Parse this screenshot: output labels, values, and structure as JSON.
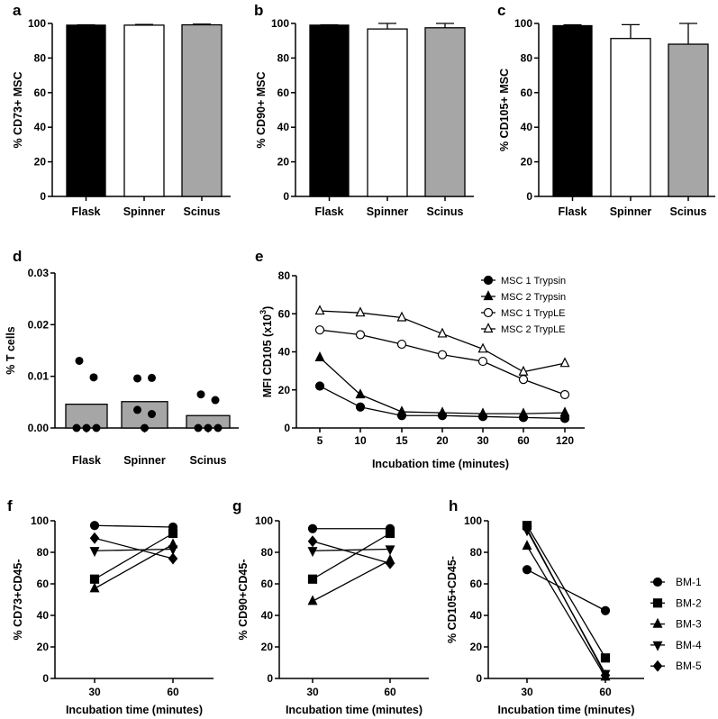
{
  "chart_data": [
    {
      "id": "a",
      "panel": "a",
      "type": "bar",
      "categories": [
        "Flask",
        "Spinner",
        "Scinus"
      ],
      "values": [
        99,
        99,
        99.2
      ],
      "errors": [
        0.2,
        0.4,
        0.4
      ],
      "colors": [
        "#000000",
        "#ffffff",
        "#a6a6a6"
      ],
      "ylabel": "% CD73+ MSC",
      "ylim": [
        0,
        100
      ],
      "yticks": [
        "0",
        "20",
        "40",
        "60",
        "80",
        "100"
      ]
    },
    {
      "id": "b",
      "panel": "b",
      "type": "bar",
      "categories": [
        "Flask",
        "Spinner",
        "Scinus"
      ],
      "values": [
        99,
        96.8,
        97.5
      ],
      "errors": [
        0.2,
        3.2,
        2.5
      ],
      "colors": [
        "#000000",
        "#ffffff",
        "#a6a6a6"
      ],
      "ylabel": "% CD90+ MSC",
      "ylim": [
        0,
        100
      ],
      "yticks": [
        "0",
        "20",
        "40",
        "60",
        "80",
        "100"
      ]
    },
    {
      "id": "c",
      "panel": "c",
      "type": "bar",
      "categories": [
        "Flask",
        "Spinner",
        "Scinus"
      ],
      "values": [
        98.7,
        91.3,
        88
      ],
      "errors": [
        0.5,
        8,
        12
      ],
      "colors": [
        "#000000",
        "#ffffff",
        "#a6a6a6"
      ],
      "ylabel": "% CD105+ MSC",
      "ylim": [
        0,
        100
      ],
      "yticks": [
        "0",
        "20",
        "40",
        "60",
        "80",
        "100"
      ]
    },
    {
      "id": "d",
      "panel": "d",
      "type": "bar",
      "categories": [
        "Flask",
        "Spinner",
        "Scinus"
      ],
      "values": [
        0.0046,
        0.0051,
        0.0024
      ],
      "points": [
        [
          0.013,
          0.0098,
          0,
          0,
          0
        ],
        [
          0.0096,
          0.0097,
          0.0035,
          0.0027,
          0
        ],
        [
          0.0065,
          0.0054,
          0,
          0,
          0
        ]
      ],
      "colors": [
        "#a6a6a6",
        "#a6a6a6",
        "#a6a6a6"
      ],
      "ylabel": "% T cells",
      "ylim": [
        0,
        0.03
      ],
      "yticks": [
        "0.00",
        "0.01",
        "0.02",
        "0.03"
      ]
    },
    {
      "id": "e",
      "panel": "e",
      "type": "line",
      "x": [
        "5",
        "10",
        "15",
        "20",
        "30",
        "60",
        "120"
      ],
      "ylabel": "MFI CD105 (x10",
      "ylabel_sup": "3",
      "ylabel_end": ")",
      "xlabel": "Incubation time (minutes)",
      "ylim": [
        0,
        80
      ],
      "yticks": [
        "0",
        "20",
        "40",
        "60",
        "80"
      ],
      "legend": "top-right",
      "series": [
        {
          "name": "MSC 1 Trypsin",
          "marker": "circle",
          "filled": true,
          "values": [
            22,
            11,
            6.5,
            6.5,
            6,
            5.5,
            5
          ]
        },
        {
          "name": "MSC 2 Trypsin",
          "marker": "triangle",
          "filled": true,
          "values": [
            37,
            17.5,
            8.5,
            8,
            7.5,
            7.5,
            8
          ]
        },
        {
          "name": "MSC 1 TrypLE",
          "marker": "circle",
          "filled": false,
          "values": [
            51.5,
            49,
            44,
            38.5,
            35,
            25.5,
            17.5
          ]
        },
        {
          "name": "MSC 2 TrypLE",
          "marker": "triangle",
          "filled": false,
          "values": [
            61.5,
            60.5,
            58,
            49.5,
            41.5,
            29.5,
            34
          ]
        }
      ]
    },
    {
      "id": "f",
      "panel": "f",
      "type": "line",
      "x": [
        "30",
        "60"
      ],
      "ylabel": "% CD73+CD45-",
      "xlabel": "Incubation time (minutes)",
      "ylim": [
        0,
        100
      ],
      "yticks": [
        "0",
        "20",
        "40",
        "60",
        "80",
        "100"
      ],
      "series": [
        {
          "name": "BM-1",
          "marker": "circle",
          "values": [
            97,
            96
          ]
        },
        {
          "name": "BM-2",
          "marker": "square",
          "values": [
            63,
            92
          ]
        },
        {
          "name": "BM-3",
          "marker": "triangle",
          "values": [
            57,
            85
          ]
        },
        {
          "name": "BM-4",
          "marker": "triangle-down",
          "values": [
            81,
            82
          ]
        },
        {
          "name": "BM-5",
          "marker": "diamond",
          "values": [
            89,
            76
          ]
        }
      ]
    },
    {
      "id": "g",
      "panel": "g",
      "type": "line",
      "x": [
        "30",
        "60"
      ],
      "ylabel": "% CD90+CD45-",
      "xlabel": "Incubation time (minutes)",
      "ylim": [
        0,
        100
      ],
      "yticks": [
        "0",
        "20",
        "40",
        "60",
        "80",
        "100"
      ],
      "series": [
        {
          "name": "BM-1",
          "marker": "circle",
          "values": [
            95,
            95
          ]
        },
        {
          "name": "BM-2",
          "marker": "square",
          "values": [
            63,
            92
          ]
        },
        {
          "name": "BM-3",
          "marker": "triangle",
          "values": [
            49,
            75
          ]
        },
        {
          "name": "BM-4",
          "marker": "triangle-down",
          "values": [
            81,
            82
          ]
        },
        {
          "name": "BM-5",
          "marker": "diamond",
          "values": [
            87,
            73
          ]
        }
      ]
    },
    {
      "id": "h",
      "panel": "h",
      "type": "line",
      "x": [
        "30",
        "60"
      ],
      "ylabel": "% CD105+CD45-",
      "xlabel": "Incubation time (minutes)",
      "ylim": [
        0,
        100
      ],
      "yticks": [
        "0",
        "20",
        "40",
        "60",
        "80",
        "100"
      ],
      "legend": "right",
      "series": [
        {
          "name": "BM-1",
          "marker": "circle",
          "values": [
            69,
            43
          ]
        },
        {
          "name": "BM-2",
          "marker": "square",
          "values": [
            97,
            13
          ]
        },
        {
          "name": "BM-3",
          "marker": "triangle",
          "values": [
            84,
            1
          ]
        },
        {
          "name": "BM-4",
          "marker": "triangle-down",
          "values": [
            94,
            3
          ]
        },
        {
          "name": "BM-5",
          "marker": "diamond",
          "values": [
            95,
            2
          ]
        }
      ]
    }
  ]
}
